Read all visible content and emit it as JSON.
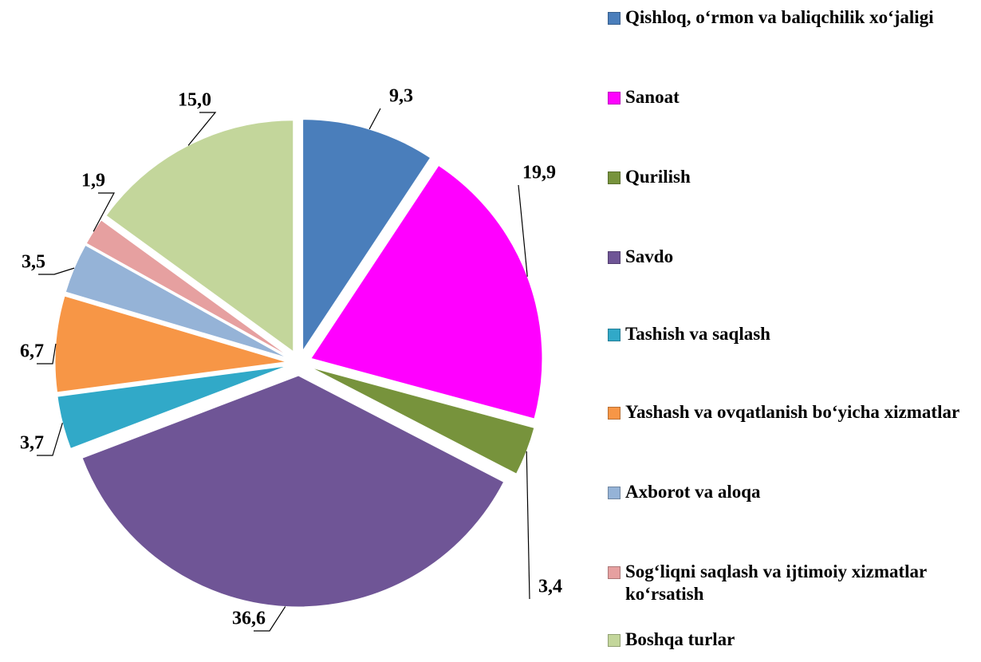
{
  "chart_data": {
    "type": "pie",
    "categories": [
      "Qishloq, o‘rmon va baliqchilik xo‘jaligi",
      "Sanoat",
      "Qurilish",
      "Savdo",
      "Tashish va saqlash",
      "Yashash va ovqatlanish bo‘yicha xizmatlar",
      "Axborot va aloqa",
      "Sog‘liqni saqlash va ijtimoiy xizmatlar ko‘rsatish",
      "Boshqa turlar"
    ],
    "values": [
      9.3,
      19.9,
      3.4,
      36.6,
      3.7,
      6.7,
      3.5,
      1.9,
      15.0
    ],
    "value_labels": [
      "9,3",
      "19,9",
      "3,4",
      "36,6",
      "3,7",
      "6,7",
      "3,5",
      "1,9",
      "15,0"
    ],
    "colors": [
      "#4a7ebb",
      "#ff00ff",
      "#77933c",
      "#6f5596",
      "#31a9c8",
      "#f79646",
      "#95b3d7",
      "#e6a0a0",
      "#c3d69b"
    ],
    "legend": "right"
  }
}
